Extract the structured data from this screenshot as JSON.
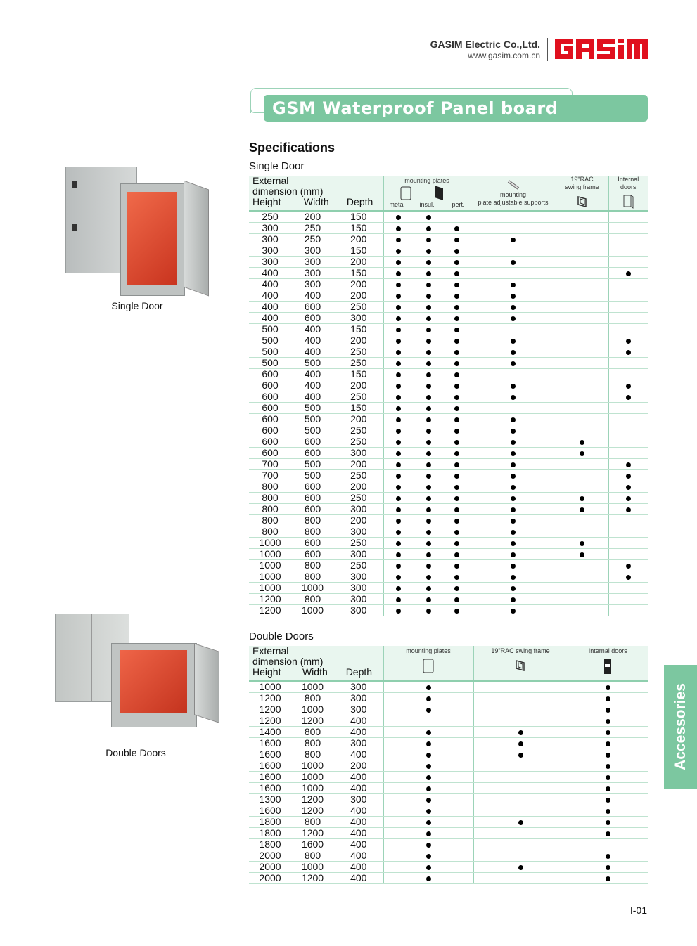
{
  "header": {
    "company": "GASIM Electric Co.,Ltd.",
    "url": "www.gasim.com.cn",
    "logo_text": "GASIM",
    "logo_color": "#e0101e"
  },
  "title": "GSM Waterproof Panel board",
  "accent_color": "#7cc7a0",
  "section_heading": "Specifications",
  "single": {
    "heading": "Single Door",
    "image_caption": "Single Door",
    "dim_header": [
      "External",
      "dimension (mm)"
    ],
    "col_headers": {
      "height": "Height",
      "width": "Width",
      "depth": "Depth",
      "mounting_plates": "mounting plates",
      "metal": "metal",
      "insul": "insul.",
      "pert": "pert.",
      "supports_1": "mounting",
      "supports_2": "plate adjustable supports",
      "rac_1": "19\"RAC",
      "rac_2": "swing frame",
      "internal_1": "Internal",
      "internal_2": "doors"
    },
    "icons": [
      "plate-outline-icon",
      "plate-black-icon",
      "bracket-icon",
      "swing-frame-icon",
      "internal-door-icon"
    ],
    "rows": [
      [
        250,
        200,
        150,
        1,
        1,
        0,
        0,
        0,
        0
      ],
      [
        300,
        250,
        150,
        1,
        1,
        1,
        0,
        0,
        0
      ],
      [
        300,
        250,
        200,
        1,
        1,
        1,
        1,
        0,
        0
      ],
      [
        300,
        300,
        150,
        1,
        1,
        1,
        0,
        0,
        0
      ],
      [
        300,
        300,
        200,
        1,
        1,
        1,
        1,
        0,
        0
      ],
      [
        400,
        300,
        150,
        1,
        1,
        1,
        0,
        0,
        1
      ],
      [
        400,
        300,
        200,
        1,
        1,
        1,
        1,
        0,
        0
      ],
      [
        400,
        400,
        200,
        1,
        1,
        1,
        1,
        0,
        0
      ],
      [
        400,
        600,
        250,
        1,
        1,
        1,
        1,
        0,
        0
      ],
      [
        400,
        600,
        300,
        1,
        1,
        1,
        1,
        0,
        0
      ],
      [
        500,
        400,
        150,
        1,
        1,
        1,
        0,
        0,
        0
      ],
      [
        500,
        400,
        200,
        1,
        1,
        1,
        1,
        0,
        1
      ],
      [
        500,
        400,
        250,
        1,
        1,
        1,
        1,
        0,
        1
      ],
      [
        500,
        500,
        250,
        1,
        1,
        1,
        1,
        0,
        0
      ],
      [
        600,
        400,
        150,
        1,
        1,
        1,
        0,
        0,
        0
      ],
      [
        600,
        400,
        200,
        1,
        1,
        1,
        1,
        0,
        1
      ],
      [
        600,
        400,
        250,
        1,
        1,
        1,
        1,
        0,
        1
      ],
      [
        600,
        500,
        150,
        1,
        1,
        1,
        0,
        0,
        0
      ],
      [
        600,
        500,
        200,
        1,
        1,
        1,
        1,
        0,
        0
      ],
      [
        600,
        500,
        250,
        1,
        1,
        1,
        1,
        0,
        0
      ],
      [
        600,
        600,
        250,
        1,
        1,
        1,
        1,
        1,
        0
      ],
      [
        600,
        600,
        300,
        1,
        1,
        1,
        1,
        1,
        0
      ],
      [
        700,
        500,
        200,
        1,
        1,
        1,
        1,
        0,
        1
      ],
      [
        700,
        500,
        250,
        1,
        1,
        1,
        1,
        0,
        1
      ],
      [
        800,
        600,
        200,
        1,
        1,
        1,
        1,
        0,
        1
      ],
      [
        800,
        600,
        250,
        1,
        1,
        1,
        1,
        1,
        1
      ],
      [
        800,
        600,
        300,
        1,
        1,
        1,
        1,
        1,
        1
      ],
      [
        800,
        800,
        200,
        1,
        1,
        1,
        1,
        0,
        0
      ],
      [
        800,
        800,
        300,
        1,
        1,
        1,
        1,
        0,
        0
      ],
      [
        1000,
        600,
        250,
        1,
        1,
        1,
        1,
        1,
        0
      ],
      [
        1000,
        600,
        300,
        1,
        1,
        1,
        1,
        1,
        0
      ],
      [
        1000,
        800,
        250,
        1,
        1,
        1,
        1,
        0,
        1
      ],
      [
        1000,
        800,
        300,
        1,
        1,
        1,
        1,
        0,
        1
      ],
      [
        1000,
        1000,
        300,
        1,
        1,
        1,
        1,
        0,
        0
      ],
      [
        1200,
        800,
        300,
        1,
        1,
        1,
        1,
        0,
        0
      ],
      [
        1200,
        1000,
        300,
        1,
        1,
        1,
        1,
        0,
        0
      ]
    ]
  },
  "double": {
    "heading": "Double Doors",
    "image_caption": "Double Doors",
    "dim_header": [
      "External",
      "dimension (mm)"
    ],
    "col_headers": {
      "height": "Height",
      "width": "Width",
      "depth": "Depth",
      "mounting_plates": "mounting plates",
      "rac": "19\"RAC swing frame",
      "internal": "Internal doors"
    },
    "rows": [
      [
        1000,
        1000,
        300,
        1,
        0,
        1
      ],
      [
        1200,
        800,
        300,
        1,
        0,
        1
      ],
      [
        1200,
        1000,
        300,
        1,
        0,
        1
      ],
      [
        1200,
        1200,
        400,
        0,
        0,
        1
      ],
      [
        1400,
        800,
        400,
        1,
        1,
        1
      ],
      [
        1600,
        800,
        300,
        1,
        1,
        1
      ],
      [
        1600,
        800,
        400,
        1,
        1,
        1
      ],
      [
        1600,
        1000,
        200,
        1,
        0,
        1
      ],
      [
        1600,
        1000,
        400,
        1,
        0,
        1
      ],
      [
        1600,
        1000,
        400,
        1,
        0,
        1
      ],
      [
        1300,
        1200,
        300,
        1,
        0,
        1
      ],
      [
        1600,
        1200,
        400,
        1,
        0,
        1
      ],
      [
        1800,
        800,
        400,
        1,
        1,
        1
      ],
      [
        1800,
        1200,
        400,
        1,
        0,
        1
      ],
      [
        1800,
        1600,
        400,
        1,
        0,
        0
      ],
      [
        2000,
        800,
        400,
        1,
        0,
        1
      ],
      [
        2000,
        1000,
        400,
        1,
        1,
        1
      ],
      [
        2000,
        1200,
        400,
        1,
        0,
        1
      ]
    ]
  },
  "side_tab": "Accessories",
  "page_number": "I-01"
}
